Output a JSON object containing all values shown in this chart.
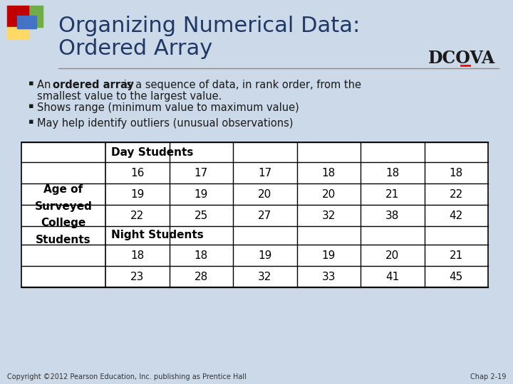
{
  "title_line1": "Organizing Numerical Data:",
  "title_line2": "Ordered Array",
  "bg_color": "#ccd9e8",
  "title_color": "#1f3864",
  "dcova_text": "DCOVA",
  "table_header_left": "Age of\nSurveyed\nCollege\nStudents",
  "table_day_label": "Day Students",
  "table_night_label": "Night Students",
  "table_day_rows": [
    [
      16,
      17,
      17,
      18,
      18,
      18
    ],
    [
      19,
      19,
      20,
      20,
      21,
      22
    ],
    [
      22,
      25,
      27,
      32,
      38,
      42
    ]
  ],
  "table_night_rows": [
    [
      18,
      18,
      19,
      19,
      20,
      21
    ],
    [
      23,
      28,
      32,
      33,
      41,
      45
    ]
  ],
  "footer_left": "Copyright ©2012 Pearson Education, Inc. publishing as Prentice Hall",
  "footer_right": "Chap 2-19",
  "decoration_red": "#c00000",
  "decoration_yellow": "#ffd966",
  "decoration_blue": "#4472c4",
  "decoration_green": "#70ad47",
  "separator_color": "#8c8c8c"
}
